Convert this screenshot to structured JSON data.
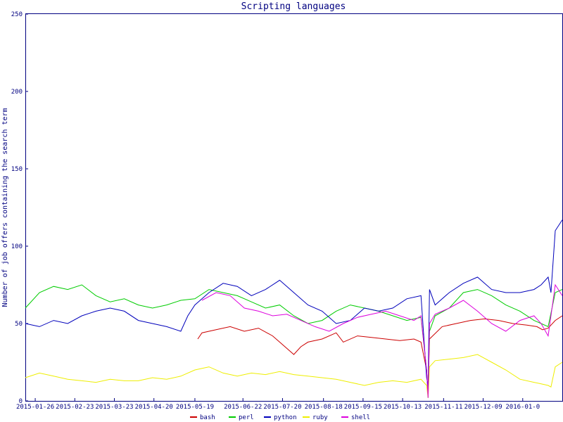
{
  "chart_data": {
    "type": "line",
    "title": "Scripting languages",
    "xlabel": "",
    "ylabel": "Number of job offers containing the search term",
    "ylim": [
      0,
      250
    ],
    "yticks": [
      0,
      50,
      100,
      150,
      200,
      250
    ],
    "x_start": "2015-01-19",
    "x_end": "2016-01-05",
    "xticks": [
      "2015-01-26",
      "2015-02-23",
      "2015-03-23",
      "2015-04-20",
      "2015-05-19",
      "2015-06-22",
      "2015-07-20",
      "2015-08-18",
      "2015-09-15",
      "2015-10-13",
      "2015-11-11",
      "2015-12-09",
      "2016-01-0"
    ],
    "legend_position": "bottom",
    "series": [
      {
        "name": "bash",
        "color": "#cc0000",
        "x": [
          122,
          125,
          135,
          145,
          155,
          165,
          175,
          180,
          190,
          195,
          200,
          210,
          220,
          225,
          235,
          245,
          255,
          265,
          275,
          280,
          284,
          285,
          286,
          295,
          305,
          315,
          325,
          335,
          345,
          355,
          362,
          366,
          370,
          375,
          380
        ],
        "y": [
          40,
          44,
          46,
          48,
          45,
          47,
          42,
          38,
          30,
          35,
          38,
          40,
          44,
          38,
          42,
          41,
          40,
          39,
          40,
          38,
          20,
          5,
          40,
          48,
          50,
          52,
          53,
          52,
          50,
          49,
          48,
          46,
          47,
          52,
          55
        ]
      },
      {
        "name": "perl",
        "color": "#00cc00",
        "x": [
          0,
          10,
          20,
          30,
          40,
          50,
          60,
          70,
          80,
          90,
          100,
          110,
          120,
          130,
          140,
          150,
          160,
          170,
          180,
          190,
          200,
          210,
          220,
          230,
          240,
          250,
          260,
          270,
          280,
          284,
          285,
          286,
          290,
          300,
          310,
          320,
          330,
          340,
          350,
          360,
          365,
          370,
          375,
          380
        ],
        "y": [
          60,
          70,
          74,
          72,
          75,
          68,
          64,
          66,
          62,
          60,
          62,
          65,
          66,
          72,
          70,
          68,
          64,
          60,
          62,
          55,
          50,
          52,
          58,
          62,
          60,
          58,
          55,
          52,
          54,
          20,
          2,
          45,
          55,
          60,
          70,
          72,
          68,
          62,
          58,
          52,
          50,
          48,
          70,
          72
        ]
      },
      {
        "name": "python",
        "color": "#0000bb",
        "x": [
          0,
          10,
          20,
          30,
          40,
          50,
          60,
          70,
          80,
          90,
          100,
          110,
          115,
          120,
          130,
          140,
          150,
          160,
          170,
          180,
          190,
          200,
          210,
          220,
          230,
          240,
          250,
          260,
          270,
          280,
          284,
          285,
          286,
          290,
          300,
          310,
          320,
          330,
          340,
          350,
          360,
          365,
          370,
          372,
          375,
          380
        ],
        "y": [
          50,
          48,
          52,
          50,
          55,
          58,
          60,
          58,
          52,
          50,
          48,
          45,
          55,
          62,
          70,
          76,
          74,
          68,
          72,
          78,
          70,
          62,
          58,
          50,
          52,
          60,
          58,
          60,
          66,
          68,
          15,
          10,
          72,
          62,
          70,
          76,
          80,
          72,
          70,
          70,
          72,
          75,
          80,
          70,
          110,
          117
        ]
      },
      {
        "name": "ruby",
        "color": "#eeee00",
        "x": [
          0,
          10,
          20,
          30,
          40,
          50,
          60,
          70,
          80,
          90,
          100,
          110,
          120,
          130,
          140,
          150,
          160,
          170,
          180,
          190,
          200,
          210,
          220,
          230,
          240,
          250,
          260,
          270,
          280,
          284,
          285,
          286,
          290,
          300,
          310,
          320,
          330,
          340,
          350,
          360,
          365,
          370,
          372,
          375,
          380
        ],
        "y": [
          15,
          18,
          16,
          14,
          13,
          12,
          14,
          13,
          13,
          15,
          14,
          16,
          20,
          22,
          18,
          16,
          18,
          17,
          19,
          17,
          16,
          15,
          14,
          12,
          10,
          12,
          13,
          12,
          14,
          10,
          2,
          22,
          26,
          27,
          28,
          30,
          25,
          20,
          14,
          12,
          11,
          10,
          9,
          22,
          25
        ]
      },
      {
        "name": "shell",
        "color": "#dd00dd",
        "x": [
          125,
          135,
          145,
          155,
          165,
          175,
          185,
          195,
          205,
          215,
          225,
          235,
          245,
          255,
          265,
          275,
          280,
          284,
          285,
          286,
          290,
          300,
          310,
          320,
          330,
          340,
          350,
          360,
          365,
          370,
          372,
          375,
          380
        ],
        "y": [
          65,
          70,
          68,
          60,
          58,
          55,
          56,
          52,
          48,
          45,
          50,
          54,
          56,
          58,
          55,
          52,
          55,
          20,
          2,
          50,
          56,
          60,
          65,
          58,
          50,
          45,
          52,
          55,
          50,
          42,
          55,
          75,
          68
        ]
      }
    ]
  }
}
